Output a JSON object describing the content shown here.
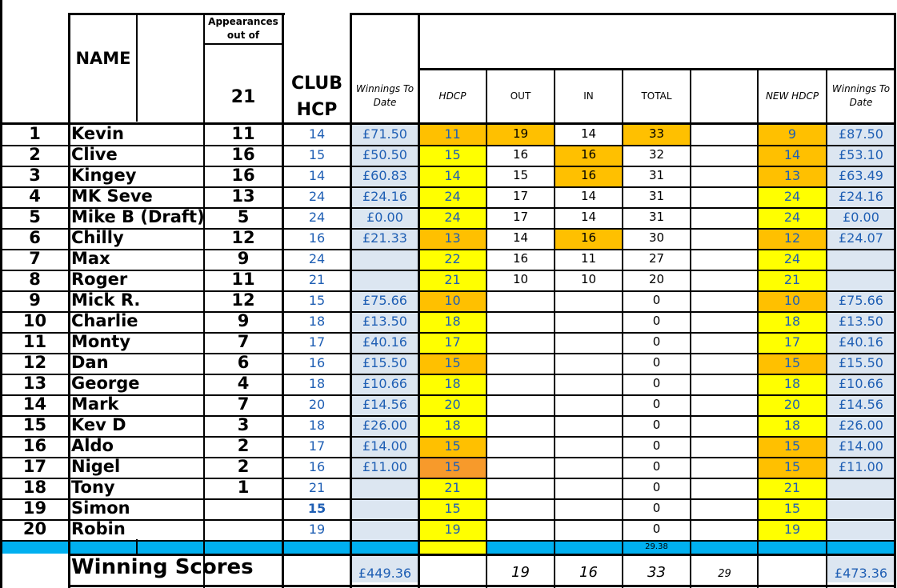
{
  "headers": {
    "name": "NAME",
    "appearances": "Appearances out of",
    "appearances_total": "21",
    "club_hcp": "CLUB HCP",
    "winnings_to_date": "Winnings To Date",
    "hdcp": "HDCP",
    "out": "OUT",
    "in": "IN",
    "total": "TOTAL",
    "new_hdcp": "NEW HDCP",
    "winnings_to_date_2": "Winnings To Date"
  },
  "colors": {
    "orange": "#ffc000",
    "orange_dark": "#f79a2b",
    "yellow": "#ffff00",
    "light_blue": "#dce6f1",
    "cyan": "#00b0f0",
    "money_blue": "#1f5fb4"
  },
  "rows": [
    {
      "num": "1",
      "name": "Kevin",
      "app": "11",
      "club": "14",
      "win": "£71.50",
      "hdcp": "11",
      "hdcp_color": "orange",
      "out": "19",
      "out_color": "orange",
      "in": "14",
      "in_color": "",
      "total": "33",
      "total_color": "orange",
      "new_hdcp": "9",
      "new_hdcp_color": "orange",
      "win2": "£87.50"
    },
    {
      "num": "2",
      "name": "Clive",
      "app": "16",
      "club": "15",
      "win": "£50.50",
      "hdcp": "15",
      "hdcp_color": "yellow",
      "out": "16",
      "out_color": "",
      "in": "16",
      "in_color": "orange",
      "total": "32",
      "total_color": "",
      "new_hdcp": "14",
      "new_hdcp_color": "orange",
      "win2": "£53.10"
    },
    {
      "num": "3",
      "name": "Kingey",
      "app": "16",
      "club": "14",
      "win": "£60.83",
      "hdcp": "14",
      "hdcp_color": "yellow",
      "out": "15",
      "out_color": "",
      "in": "16",
      "in_color": "orange",
      "total": "31",
      "total_color": "",
      "new_hdcp": "13",
      "new_hdcp_color": "orange",
      "win2": "£63.49"
    },
    {
      "num": "4",
      "name": "MK Seve",
      "app": "13",
      "club": "24",
      "win": "£24.16",
      "hdcp": "24",
      "hdcp_color": "yellow",
      "out": "17",
      "out_color": "",
      "in": "14",
      "in_color": "",
      "total": "31",
      "total_color": "",
      "new_hdcp": "24",
      "new_hdcp_color": "yellow",
      "win2": "£24.16"
    },
    {
      "num": "5",
      "name": "Mike B (Draft)",
      "app": "5",
      "club": "24",
      "win": "£0.00",
      "hdcp": "24",
      "hdcp_color": "yellow",
      "out": "17",
      "out_color": "",
      "in": "14",
      "in_color": "",
      "total": "31",
      "total_color": "",
      "new_hdcp": "24",
      "new_hdcp_color": "yellow",
      "win2": "£0.00"
    },
    {
      "num": "6",
      "name": "Chilly",
      "app": "12",
      "club": "16",
      "win": "£21.33",
      "hdcp": "13",
      "hdcp_color": "orange",
      "out": "14",
      "out_color": "",
      "in": "16",
      "in_color": "orange",
      "total": "30",
      "total_color": "",
      "new_hdcp": "12",
      "new_hdcp_color": "orange",
      "win2": "£24.07"
    },
    {
      "num": "7",
      "name": "Max",
      "app": "9",
      "club": "24",
      "win": "",
      "hdcp": "22",
      "hdcp_color": "yellow",
      "out": "16",
      "out_color": "",
      "in": "11",
      "in_color": "",
      "total": "27",
      "total_color": "",
      "new_hdcp": "24",
      "new_hdcp_color": "yellow",
      "win2": ""
    },
    {
      "num": "8",
      "name": "Roger",
      "app": "11",
      "club": "21",
      "win": "",
      "hdcp": "21",
      "hdcp_color": "yellow",
      "out": "10",
      "out_color": "",
      "in": "10",
      "in_color": "",
      "total": "20",
      "total_color": "",
      "new_hdcp": "21",
      "new_hdcp_color": "yellow",
      "win2": ""
    },
    {
      "num": "9",
      "name": "Mick R.",
      "app": "12",
      "club": "15",
      "win": "£75.66",
      "hdcp": "10",
      "hdcp_color": "orange",
      "out": "",
      "out_color": "",
      "in": "",
      "in_color": "",
      "total": "0",
      "total_color": "",
      "new_hdcp": "10",
      "new_hdcp_color": "orange",
      "win2": "£75.66"
    },
    {
      "num": "10",
      "name": "Charlie",
      "app": "9",
      "club": "18",
      "win": "£13.50",
      "hdcp": "18",
      "hdcp_color": "yellow",
      "out": "",
      "out_color": "",
      "in": "",
      "in_color": "",
      "total": "0",
      "total_color": "",
      "new_hdcp": "18",
      "new_hdcp_color": "yellow",
      "win2": "£13.50"
    },
    {
      "num": "11",
      "name": "Monty",
      "app": "7",
      "club": "17",
      "win": "£40.16",
      "hdcp": "17",
      "hdcp_color": "yellow",
      "out": "",
      "out_color": "",
      "in": "",
      "in_color": "",
      "total": "0",
      "total_color": "",
      "new_hdcp": "17",
      "new_hdcp_color": "yellow",
      "win2": "£40.16"
    },
    {
      "num": "12",
      "name": "Dan",
      "app": "6",
      "club": "16",
      "win": "£15.50",
      "hdcp": "15",
      "hdcp_color": "orange",
      "out": "",
      "out_color": "",
      "in": "",
      "in_color": "",
      "total": "0",
      "total_color": "",
      "new_hdcp": "15",
      "new_hdcp_color": "orange",
      "win2": "£15.50"
    },
    {
      "num": "13",
      "name": "George",
      "app": "4",
      "club": "18",
      "win": "£10.66",
      "hdcp": "18",
      "hdcp_color": "yellow",
      "out": "",
      "out_color": "",
      "in": "",
      "in_color": "",
      "total": "0",
      "total_color": "",
      "new_hdcp": "18",
      "new_hdcp_color": "yellow",
      "win2": "£10.66"
    },
    {
      "num": "14",
      "name": "Mark",
      "app": "7",
      "club": "20",
      "win": "£14.56",
      "hdcp": "20",
      "hdcp_color": "yellow",
      "out": "",
      "out_color": "",
      "in": "",
      "in_color": "",
      "total": "0",
      "total_color": "",
      "new_hdcp": "20",
      "new_hdcp_color": "yellow",
      "win2": "£14.56"
    },
    {
      "num": "15",
      "name": "Kev D",
      "app": "3",
      "club": "18",
      "win": "£26.00",
      "hdcp": "18",
      "hdcp_color": "yellow",
      "out": "",
      "out_color": "",
      "in": "",
      "in_color": "",
      "total": "0",
      "total_color": "",
      "new_hdcp": "18",
      "new_hdcp_color": "yellow",
      "win2": "£26.00"
    },
    {
      "num": "16",
      "name": "Aldo",
      "app": "2",
      "club": "17",
      "win": "£14.00",
      "hdcp": "15",
      "hdcp_color": "orange",
      "out": "",
      "out_color": "",
      "in": "",
      "in_color": "",
      "total": "0",
      "total_color": "",
      "new_hdcp": "15",
      "new_hdcp_color": "orange",
      "win2": "£14.00"
    },
    {
      "num": "17",
      "name": "Nigel",
      "app": "2",
      "club": "16",
      "win": "£11.00",
      "hdcp": "15",
      "hdcp_color": "orange_dark",
      "out": "",
      "out_color": "",
      "in": "",
      "in_color": "",
      "total": "0",
      "total_color": "",
      "new_hdcp": "15",
      "new_hdcp_color": "orange",
      "win2": "£11.00"
    },
    {
      "num": "18",
      "name": "Tony",
      "app": "1",
      "club": "21",
      "win": "",
      "hdcp": "21",
      "hdcp_color": "yellow",
      "out": "",
      "out_color": "",
      "in": "",
      "in_color": "",
      "total": "0",
      "total_color": "",
      "new_hdcp": "21",
      "new_hdcp_color": "yellow",
      "win2": ""
    },
    {
      "num": "19",
      "name": "Simon",
      "app": "",
      "club": "15",
      "win": "",
      "hdcp": "15",
      "hdcp_color": "yellow",
      "out": "",
      "out_color": "",
      "in": "",
      "in_color": "",
      "total": "0",
      "total_color": "",
      "new_hdcp": "15",
      "new_hdcp_color": "yellow",
      "win2": ""
    },
    {
      "num": "20",
      "name": "Robin",
      "app": "",
      "club": "19",
      "win": "",
      "hdcp": "19",
      "hdcp_color": "yellow",
      "out": "",
      "out_color": "",
      "in": "",
      "in_color": "",
      "total": "0",
      "total_color": "",
      "new_hdcp": "19",
      "new_hdcp_color": "yellow",
      "win2": ""
    }
  ],
  "average_row": {
    "total": "29.38"
  },
  "footer": {
    "label": "Winning Scores",
    "winnings": "£449.36",
    "out": "19",
    "in": "16",
    "total": "33",
    "extra": "29",
    "winnings2": "£473.36"
  }
}
